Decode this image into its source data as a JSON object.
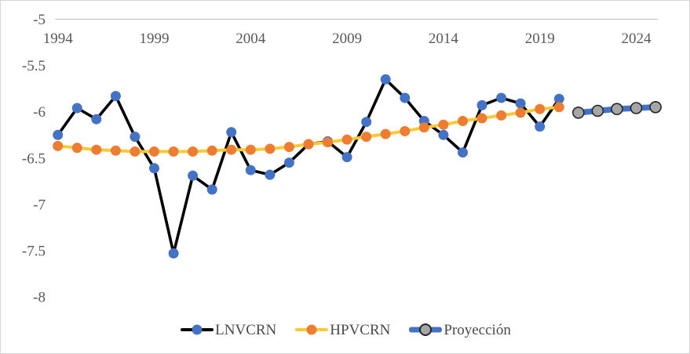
{
  "page": {
    "background": "#ffffff",
    "border_color": "#d7d7d7",
    "axis_text_color": "#595959",
    "gridline_color": "#c9c9c9"
  },
  "chart_data": {
    "type": "line",
    "title": "",
    "xlabel": "",
    "ylabel": "",
    "xticks": [
      1994,
      1999,
      2004,
      2009,
      2014,
      2019,
      2024
    ],
    "yticks": [
      -5,
      -5.5,
      -6,
      -6.5,
      -7,
      -7.5,
      -8
    ],
    "ylim": [
      -8.5,
      -5
    ],
    "xlim": [
      1993.8,
      2025.2
    ],
    "grid": "single horizontal line at y = -5 (top axis line), x tick labels below it",
    "legend_position": "bottom-center",
    "series": [
      {
        "name": "LNVCRN",
        "start_year": 1994,
        "line_color": "#000000",
        "marker_color": "#4472c4",
        "marker": "circle",
        "values": [
          -6.25,
          -5.96,
          -6.08,
          -5.83,
          -6.27,
          -6.61,
          -7.53,
          -6.69,
          -6.84,
          -6.22,
          -6.63,
          -6.68,
          -6.55,
          -6.35,
          -6.32,
          -6.49,
          -6.11,
          -5.65,
          -5.85,
          -6.1,
          -6.25,
          -6.44,
          -5.93,
          -5.85,
          -5.91,
          -6.16,
          -5.86
        ]
      },
      {
        "name": "HPVCRN",
        "start_year": 1994,
        "line_color": "#ffc933",
        "marker_color": "#ed7d31",
        "marker": "circle",
        "values": [
          -6.37,
          -6.39,
          -6.41,
          -6.42,
          -6.43,
          -6.43,
          -6.43,
          -6.43,
          -6.42,
          -6.41,
          -6.41,
          -6.4,
          -6.38,
          -6.35,
          -6.33,
          -6.3,
          -6.27,
          -6.24,
          -6.21,
          -6.17,
          -6.14,
          -6.1,
          -6.07,
          -6.04,
          -6.01,
          -5.97,
          -5.95
        ]
      },
      {
        "name": "Proyección",
        "start_year": 2021,
        "line_color": "#4472c4",
        "marker_color": "#a6a6a6",
        "marker_stroke": "#262626",
        "marker": "circle-outlined",
        "values": [
          -6.01,
          -5.99,
          -5.97,
          -5.96,
          -5.95
        ]
      }
    ]
  }
}
